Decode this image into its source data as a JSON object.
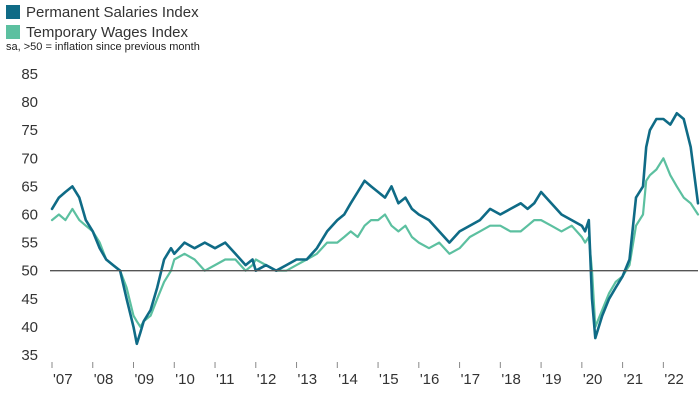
{
  "legend": {
    "permanent": "Permanent Salaries Index",
    "temporary": "Temporary Wages Index"
  },
  "note": "sa, >50 = inflation since previous month",
  "colors": {
    "permanent": "#0f6b86",
    "temporary": "#5cc0a0",
    "baseline": "#555555",
    "axis": "#888888"
  },
  "chart_data": {
    "type": "line",
    "title": "",
    "xlabel": "",
    "ylabel": "",
    "ylim": [
      35,
      85
    ],
    "xlim": [
      2007.0,
      2022.85
    ],
    "y_ticks": [
      35,
      40,
      45,
      50,
      55,
      60,
      65,
      70,
      75,
      80,
      85
    ],
    "x_ticks": [
      {
        "x": 2007.0,
        "label": "'07"
      },
      {
        "x": 2008.0,
        "label": "'08"
      },
      {
        "x": 2009.0,
        "label": "'09"
      },
      {
        "x": 2010.0,
        "label": "'10"
      },
      {
        "x": 2011.0,
        "label": "'11"
      },
      {
        "x": 2012.0,
        "label": "'12"
      },
      {
        "x": 2013.0,
        "label": "'13"
      },
      {
        "x": 2014.0,
        "label": "'14"
      },
      {
        "x": 2015.0,
        "label": "'15"
      },
      {
        "x": 2016.0,
        "label": "'16"
      },
      {
        "x": 2017.0,
        "label": "'17"
      },
      {
        "x": 2018.0,
        "label": "'18"
      },
      {
        "x": 2019.0,
        "label": "'19"
      },
      {
        "x": 2020.0,
        "label": "'20"
      },
      {
        "x": 2021.0,
        "label": "'21"
      },
      {
        "x": 2022.0,
        "label": "'22"
      }
    ],
    "reference_line": 50,
    "grid": false,
    "series": [
      {
        "name": "Permanent Salaries Index",
        "x": [
          2007.0,
          2007.17,
          2007.33,
          2007.5,
          2007.67,
          2007.83,
          2008.0,
          2008.17,
          2008.33,
          2008.5,
          2008.67,
          2008.83,
          2009.0,
          2009.08,
          2009.17,
          2009.25,
          2009.42,
          2009.58,
          2009.75,
          2009.92,
          2010.0,
          2010.25,
          2010.5,
          2010.75,
          2011.0,
          2011.25,
          2011.5,
          2011.75,
          2011.92,
          2012.0,
          2012.25,
          2012.5,
          2012.75,
          2013.0,
          2013.25,
          2013.5,
          2013.75,
          2014.0,
          2014.17,
          2014.33,
          2014.5,
          2014.67,
          2014.83,
          2015.0,
          2015.17,
          2015.33,
          2015.5,
          2015.67,
          2015.83,
          2016.0,
          2016.25,
          2016.5,
          2016.75,
          2017.0,
          2017.25,
          2017.5,
          2017.75,
          2018.0,
          2018.25,
          2018.5,
          2018.67,
          2018.83,
          2019.0,
          2019.25,
          2019.5,
          2019.75,
          2020.0,
          2020.08,
          2020.17,
          2020.25,
          2020.33,
          2020.5,
          2020.67,
          2020.83,
          2021.0,
          2021.17,
          2021.33,
          2021.5,
          2021.58,
          2021.67,
          2021.83,
          2022.0,
          2022.17,
          2022.33,
          2022.5,
          2022.67,
          2022.85
        ],
        "values": [
          61,
          63,
          64,
          65,
          63,
          59,
          57,
          54,
          52,
          51,
          50,
          45,
          40,
          37,
          39,
          41,
          43,
          47,
          52,
          54,
          53,
          55,
          54,
          55,
          54,
          55,
          53,
          51,
          52,
          50,
          51,
          50,
          51,
          52,
          52,
          54,
          57,
          59,
          60,
          62,
          64,
          66,
          65,
          64,
          63,
          65,
          62,
          63,
          61,
          60,
          59,
          57,
          55,
          57,
          58,
          59,
          61,
          60,
          61,
          62,
          61,
          62,
          64,
          62,
          60,
          59,
          58,
          57,
          59,
          45,
          38,
          42,
          45,
          47,
          49,
          52,
          63,
          65,
          72,
          75,
          77,
          77,
          76,
          78,
          77,
          72,
          62
        ]
      },
      {
        "name": "Temporary Wages Index",
        "x": [
          2007.0,
          2007.17,
          2007.33,
          2007.5,
          2007.67,
          2007.83,
          2008.0,
          2008.17,
          2008.33,
          2008.5,
          2008.67,
          2008.83,
          2009.0,
          2009.08,
          2009.17,
          2009.25,
          2009.42,
          2009.58,
          2009.75,
          2009.92,
          2010.0,
          2010.25,
          2010.5,
          2010.75,
          2011.0,
          2011.25,
          2011.5,
          2011.75,
          2011.92,
          2012.0,
          2012.25,
          2012.5,
          2012.75,
          2013.0,
          2013.25,
          2013.5,
          2013.75,
          2014.0,
          2014.17,
          2014.33,
          2014.5,
          2014.67,
          2014.83,
          2015.0,
          2015.17,
          2015.33,
          2015.5,
          2015.67,
          2015.83,
          2016.0,
          2016.25,
          2016.5,
          2016.75,
          2017.0,
          2017.25,
          2017.5,
          2017.75,
          2018.0,
          2018.25,
          2018.5,
          2018.67,
          2018.83,
          2019.0,
          2019.25,
          2019.5,
          2019.75,
          2020.0,
          2020.08,
          2020.17,
          2020.25,
          2020.33,
          2020.5,
          2020.67,
          2020.83,
          2021.0,
          2021.17,
          2021.33,
          2021.5,
          2021.58,
          2021.67,
          2021.83,
          2022.0,
          2022.17,
          2022.33,
          2022.5,
          2022.67,
          2022.85
        ],
        "values": [
          59,
          60,
          59,
          61,
          59,
          58,
          57,
          55,
          52,
          51,
          50,
          47,
          42,
          41,
          40,
          41,
          42,
          45,
          48,
          50,
          52,
          53,
          52,
          50,
          51,
          52,
          52,
          50,
          51,
          52,
          51,
          50,
          50,
          51,
          52,
          53,
          55,
          55,
          56,
          57,
          56,
          58,
          59,
          59,
          60,
          58,
          57,
          58,
          56,
          55,
          54,
          55,
          53,
          54,
          56,
          57,
          58,
          58,
          57,
          57,
          58,
          59,
          59,
          58,
          57,
          58,
          56,
          55,
          56,
          50,
          40,
          43,
          46,
          48,
          49,
          51,
          58,
          60,
          66,
          67,
          68,
          70,
          67,
          65,
          63,
          62,
          60
        ]
      }
    ]
  }
}
